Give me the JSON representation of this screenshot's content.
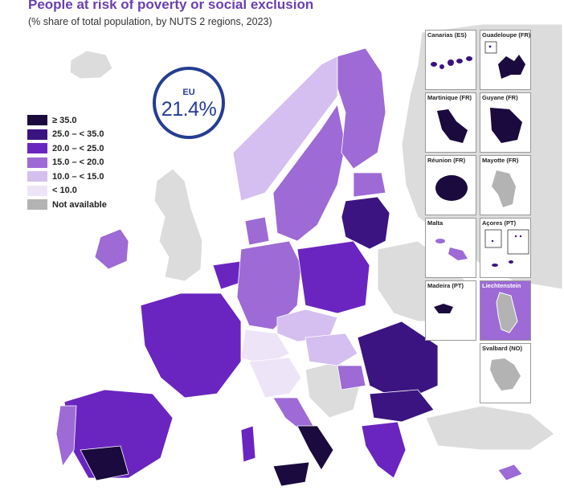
{
  "title": "People at risk of poverty or social exclusion",
  "subtitle": "(% share of total population, by NUTS 2 regions, 2023)",
  "eu": {
    "label": "EU",
    "value": "21.4%"
  },
  "legend": [
    {
      "label": "≥ 35.0",
      "color": "#1a0a3e"
    },
    {
      "label": "25.0 – < 35.0",
      "color": "#3b1481"
    },
    {
      "label": "20.0 – < 25.0",
      "color": "#6a25c0"
    },
    {
      "label": "15.0 – < 20.0",
      "color": "#9d6ad6"
    },
    {
      "label": "10.0 – < 15.0",
      "color": "#d4bff0"
    },
    {
      "label": "< 10.0",
      "color": "#ede5f7"
    },
    {
      "label": "Not available",
      "color": "#b3b3b3"
    }
  ],
  "insets": [
    {
      "label": "Canarias (ES)",
      "icon": "canarias-map"
    },
    {
      "label": "Guadeloupe (FR)",
      "icon": "guadeloupe-map"
    },
    {
      "label": "Martinique (FR)",
      "icon": "martinique-map"
    },
    {
      "label": "Guyane (FR)",
      "icon": "guyane-map"
    },
    {
      "label": "Réunion (FR)",
      "icon": "reunion-map"
    },
    {
      "label": "Mayotte (FR)",
      "icon": "mayotte-map"
    },
    {
      "label": "Malta",
      "icon": "malta-map"
    },
    {
      "label": "Açores (PT)",
      "icon": "acores-map"
    },
    {
      "label": "Madeira (PT)",
      "icon": "madeira-map"
    },
    {
      "label": "Liechtenstein",
      "icon": "liechtenstein-map"
    },
    {
      "label": "Svalbard (NO)",
      "icon": "svalbard-map"
    }
  ]
}
